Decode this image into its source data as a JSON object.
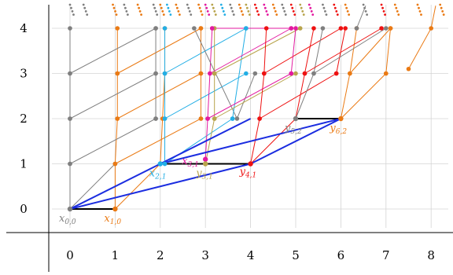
{
  "axes": {
    "x_ticks": [
      "0",
      "1",
      "2",
      "3",
      "4",
      "5",
      "6",
      "7",
      "8"
    ],
    "y_ticks": [
      "0",
      "1",
      "2",
      "3",
      "4"
    ]
  },
  "colors": {
    "gray": "#7f7f7f",
    "orange": "#ea7a14",
    "cyan": "#22aee5",
    "magenta": "#e31aa0",
    "olive": "#b8a44c",
    "red": "#ee1111",
    "blue": "#1b2de0",
    "black": "#000000",
    "grid": "#d4d4d4"
  },
  "point_labels": [
    {
      "id": "x00",
      "base": "x",
      "sub": "0,0",
      "color": "gray"
    },
    {
      "id": "x10",
      "base": "x",
      "sub": "1,0",
      "color": "orange"
    },
    {
      "id": "x21",
      "base": "x",
      "sub": "2,1",
      "color": "cyan"
    },
    {
      "id": "x31",
      "base": "x",
      "sub": "3,1",
      "color": "magenta"
    },
    {
      "id": "y31",
      "base": "y",
      "sub": "3,1",
      "color": "olive"
    },
    {
      "id": "y41",
      "base": "y",
      "sub": "4,1",
      "color": "red"
    },
    {
      "id": "y52",
      "base": "y",
      "sub": "5,2",
      "color": "gray"
    },
    {
      "id": "y62",
      "base": "y",
      "sub": "6,2",
      "color": "orange"
    }
  ],
  "points": {
    "x00": [
      0,
      0
    ],
    "x10": [
      1,
      0
    ],
    "x21": [
      2,
      1
    ],
    "x31": [
      3,
      1.1
    ],
    "y31": [
      3,
      1
    ],
    "y41": [
      4,
      1
    ],
    "y52": [
      5,
      2
    ],
    "y62": [
      6,
      2
    ]
  },
  "chains": [
    {
      "color": "gray",
      "points": [
        [
          0,
          0
        ],
        [
          0,
          1
        ],
        [
          0,
          2
        ],
        [
          0,
          3
        ],
        [
          0,
          4
        ]
      ]
    },
    {
      "color": "orange",
      "points": [
        [
          1,
          0
        ],
        [
          1,
          1
        ],
        [
          1.05,
          2
        ],
        [
          1.05,
          3
        ],
        [
          1.05,
          4
        ]
      ]
    },
    {
      "color": "gray",
      "points": [
        [
          0,
          0
        ],
        [
          1,
          1
        ]
      ]
    },
    {
      "color": "gray",
      "points": [
        [
          0,
          1
        ],
        [
          1.9,
          2
        ]
      ]
    },
    {
      "color": "gray",
      "points": [
        [
          0,
          2
        ],
        [
          1.9,
          3
        ]
      ]
    },
    {
      "color": "gray",
      "points": [
        [
          0,
          3
        ],
        [
          1.9,
          4
        ]
      ]
    },
    {
      "color": "orange",
      "points": [
        [
          1,
          0
        ],
        [
          2,
          1
        ]
      ]
    },
    {
      "color": "orange",
      "points": [
        [
          1,
          1
        ],
        [
          2.9,
          2
        ]
      ]
    },
    {
      "color": "orange",
      "points": [
        [
          1.05,
          2
        ],
        [
          2.9,
          3
        ]
      ]
    },
    {
      "color": "orange",
      "points": [
        [
          1.05,
          3
        ],
        [
          2.9,
          4
        ]
      ]
    },
    {
      "color": "gray",
      "points": [
        [
          1.9,
          2
        ],
        [
          1.9,
          3
        ],
        [
          1.9,
          4
        ]
      ]
    },
    {
      "color": "orange",
      "points": [
        [
          2,
          1
        ],
        [
          2.05,
          2
        ],
        [
          2.1,
          3
        ],
        [
          2.1,
          4
        ]
      ]
    },
    {
      "color": "cyan",
      "points": [
        [
          2.1,
          1
        ],
        [
          2.1,
          2
        ],
        [
          2.1,
          3
        ],
        [
          2.1,
          4
        ]
      ]
    },
    {
      "color": "cyan",
      "points": [
        [
          2.1,
          1
        ],
        [
          3.6,
          2
        ]
      ]
    },
    {
      "color": "cyan",
      "points": [
        [
          2.1,
          2
        ],
        [
          3.9,
          3
        ]
      ]
    },
    {
      "color": "cyan",
      "points": [
        [
          2.1,
          3
        ],
        [
          3.9,
          4
        ]
      ]
    },
    {
      "color": "magenta",
      "points": [
        [
          3,
          1.1
        ],
        [
          3.05,
          2
        ],
        [
          3.1,
          3
        ],
        [
          3.15,
          4
        ]
      ]
    },
    {
      "color": "olive",
      "points": [
        [
          3,
          1
        ],
        [
          3.2,
          2
        ],
        [
          3.2,
          3
        ],
        [
          3.2,
          4
        ]
      ]
    },
    {
      "color": "orange",
      "points": [
        [
          2.9,
          2
        ],
        [
          2.9,
          3
        ],
        [
          2.9,
          4
        ]
      ]
    },
    {
      "color": "gray",
      "points": [
        [
          2.75,
          4
        ],
        [
          3.7,
          2
        ],
        [
          4.1,
          3
        ]
      ]
    },
    {
      "color": "cyan",
      "points": [
        [
          3.6,
          2
        ],
        [
          3.9,
          4
        ]
      ]
    },
    {
      "color": "magenta",
      "points": [
        [
          3.05,
          2
        ],
        [
          4.9,
          3
        ]
      ]
    },
    {
      "color": "magenta",
      "points": [
        [
          3.1,
          3
        ],
        [
          4.9,
          4
        ]
      ]
    },
    {
      "color": "olive",
      "points": [
        [
          3.2,
          2
        ],
        [
          5.0,
          3
        ]
      ]
    },
    {
      "color": "olive",
      "points": [
        [
          3.2,
          3
        ],
        [
          5.1,
          4
        ]
      ]
    },
    {
      "color": "red",
      "points": [
        [
          4,
          1
        ],
        [
          4.2,
          2
        ],
        [
          4.3,
          3
        ],
        [
          4.35,
          4
        ]
      ]
    },
    {
      "color": "red",
      "points": [
        [
          4.2,
          2
        ],
        [
          5.9,
          3
        ]
      ]
    },
    {
      "color": "red",
      "points": [
        [
          4.3,
          3
        ],
        [
          6.0,
          4
        ]
      ]
    },
    {
      "color": "red",
      "points": [
        [
          4,
          1
        ],
        [
          5.0,
          2
        ]
      ]
    },
    {
      "color": "magenta",
      "points": [
        [
          4.9,
          3
        ],
        [
          5.0,
          4
        ]
      ]
    },
    {
      "color": "magenta",
      "points": [
        [
          3.15,
          4
        ],
        [
          4.9,
          4
        ]
      ]
    },
    {
      "color": "red",
      "points": [
        [
          5.0,
          2
        ],
        [
          5.2,
          3
        ],
        [
          5.4,
          4
        ]
      ]
    },
    {
      "color": "gray",
      "points": [
        [
          5,
          2
        ],
        [
          5.4,
          3
        ],
        [
          5.6,
          4
        ]
      ]
    },
    {
      "color": "orange",
      "points": [
        [
          6,
          2
        ],
        [
          6.2,
          3
        ],
        [
          6.35,
          4
        ]
      ]
    },
    {
      "color": "red",
      "points": [
        [
          5.9,
          3
        ],
        [
          6.1,
          4
        ]
      ]
    },
    {
      "color": "gray",
      "points": [
        [
          5.4,
          3
        ],
        [
          7.0,
          4
        ]
      ]
    },
    {
      "color": "red",
      "points": [
        [
          5.2,
          3
        ],
        [
          6.9,
          4
        ]
      ]
    },
    {
      "color": "orange",
      "points": [
        [
          6.2,
          3
        ],
        [
          7.1,
          4
        ]
      ]
    },
    {
      "color": "orange",
      "points": [
        [
          6,
          2
        ],
        [
          7.0,
          3
        ]
      ]
    },
    {
      "color": "orange",
      "points": [
        [
          7.0,
          3
        ],
        [
          7.1,
          4
        ]
      ]
    },
    {
      "color": "gray",
      "points": [
        [
          6.35,
          4
        ],
        [
          6.55,
          4.5
        ]
      ]
    },
    {
      "color": "orange",
      "points": [
        [
          7.5,
          3.1
        ],
        [
          8.0,
          4
        ],
        [
          8.1,
          4.5
        ]
      ]
    }
  ],
  "blue_lines": [
    [
      [
        0,
        0
      ],
      [
        2,
        1
      ]
    ],
    [
      [
        0,
        0
      ],
      [
        4,
        1
      ]
    ],
    [
      [
        2,
        1
      ],
      [
        4,
        2
      ]
    ],
    [
      [
        2,
        1
      ],
      [
        6,
        2
      ]
    ],
    [
      [
        4,
        1
      ],
      [
        6,
        2
      ]
    ]
  ],
  "black_lines": [
    [
      [
        0,
        0
      ],
      [
        1,
        0
      ]
    ],
    [
      [
        2,
        1
      ],
      [
        3,
        1
      ]
    ],
    [
      [
        3,
        1
      ],
      [
        4,
        1
      ]
    ],
    [
      [
        5,
        2
      ],
      [
        6,
        2
      ]
    ]
  ],
  "top_dots": [
    {
      "x": 0.0,
      "color": "gray"
    },
    {
      "x": 0.3,
      "color": "gray"
    },
    {
      "x": 0.95,
      "color": "orange"
    },
    {
      "x": 1.2,
      "color": "gray"
    },
    {
      "x": 1.5,
      "color": "orange"
    },
    {
      "x": 1.85,
      "color": "gray"
    },
    {
      "x": 2.0,
      "color": "orange"
    },
    {
      "x": 2.15,
      "color": "cyan"
    },
    {
      "x": 2.35,
      "color": "orange"
    },
    {
      "x": 2.6,
      "color": "gray"
    },
    {
      "x": 2.85,
      "color": "orange"
    },
    {
      "x": 3.0,
      "color": "magenta"
    },
    {
      "x": 3.15,
      "color": "olive"
    },
    {
      "x": 3.35,
      "color": "cyan"
    },
    {
      "x": 3.55,
      "color": "gray"
    },
    {
      "x": 3.75,
      "color": "orange"
    },
    {
      "x": 3.9,
      "color": "olive"
    },
    {
      "x": 4.1,
      "color": "red"
    },
    {
      "x": 4.3,
      "color": "magenta"
    },
    {
      "x": 4.5,
      "color": "orange"
    },
    {
      "x": 4.7,
      "color": "gray"
    },
    {
      "x": 4.9,
      "color": "red"
    },
    {
      "x": 5.1,
      "color": "olive"
    },
    {
      "x": 5.3,
      "color": "magenta"
    },
    {
      "x": 5.6,
      "color": "gray"
    },
    {
      "x": 5.85,
      "color": "red"
    },
    {
      "x": 6.1,
      "color": "orange"
    },
    {
      "x": 6.5,
      "color": "gray"
    },
    {
      "x": 6.9,
      "color": "red"
    },
    {
      "x": 7.2,
      "color": "orange"
    },
    {
      "x": 7.7,
      "color": "orange"
    },
    {
      "x": 8.2,
      "color": "orange"
    }
  ]
}
